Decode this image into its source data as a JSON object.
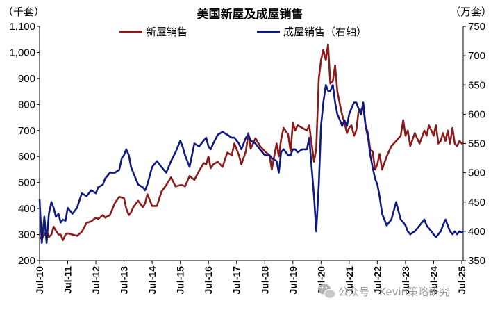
{
  "chart_data": {
    "type": "line",
    "title": "美国新屋及成屋销售",
    "left_unit": "（千套）",
    "right_unit": "（万套）",
    "left_axis": {
      "min": 200,
      "max": 1100,
      "ticks": [
        "200",
        "300",
        "400",
        "500",
        "600",
        "700",
        "800",
        "900",
        "1,000",
        "1,100"
      ]
    },
    "right_axis": {
      "min": 350,
      "max": 750,
      "ticks": [
        "350",
        "400",
        "450",
        "500",
        "550",
        "600",
        "650",
        "700",
        "750"
      ]
    },
    "x_ticks": [
      "Jul-10",
      "Jul-11",
      "Jul-12",
      "Jul-13",
      "Jul-14",
      "Jul-15",
      "Jul-16",
      "Jul-17",
      "Jul-18",
      "Jul-19",
      "Jul-20",
      "Jul-21",
      "Jul-22",
      "Jul-23",
      "Jul-24",
      "Jul-25"
    ],
    "x_range": [
      2010.5,
      2025.55
    ],
    "series": [
      {
        "name": "新屋销售",
        "axis": "left",
        "color": "#8b1a1a",
        "points": [
          [
            2010.5,
            290
          ],
          [
            2010.58,
            283
          ],
          [
            2010.67,
            300
          ],
          [
            2010.75,
            315
          ],
          [
            2010.83,
            290
          ],
          [
            2010.92,
            300
          ],
          [
            2011.0,
            330
          ],
          [
            2011.08,
            315
          ],
          [
            2011.17,
            300
          ],
          [
            2011.25,
            300
          ],
          [
            2011.33,
            278
          ],
          [
            2011.42,
            300
          ],
          [
            2011.5,
            305
          ],
          [
            2011.67,
            300
          ],
          [
            2011.83,
            295
          ],
          [
            2012.0,
            310
          ],
          [
            2012.17,
            345
          ],
          [
            2012.33,
            350
          ],
          [
            2012.5,
            365
          ],
          [
            2012.58,
            360
          ],
          [
            2012.75,
            375
          ],
          [
            2012.83,
            365
          ],
          [
            2013.0,
            375
          ],
          [
            2013.17,
            420
          ],
          [
            2013.33,
            445
          ],
          [
            2013.5,
            440
          ],
          [
            2013.58,
            400
          ],
          [
            2013.67,
            375
          ],
          [
            2013.75,
            385
          ],
          [
            2013.83,
            405
          ],
          [
            2014.0,
            430
          ],
          [
            2014.17,
            405
          ],
          [
            2014.25,
            420
          ],
          [
            2014.33,
            455
          ],
          [
            2014.5,
            410
          ],
          [
            2014.67,
            410
          ],
          [
            2014.83,
            465
          ],
          [
            2015.0,
            490
          ],
          [
            2015.17,
            520
          ],
          [
            2015.33,
            485
          ],
          [
            2015.5,
            490
          ],
          [
            2015.58,
            490
          ],
          [
            2015.67,
            485
          ],
          [
            2015.83,
            525
          ],
          [
            2016.0,
            510
          ],
          [
            2016.17,
            545
          ],
          [
            2016.33,
            575
          ],
          [
            2016.42,
            570
          ],
          [
            2016.5,
            600
          ],
          [
            2016.58,
            555
          ],
          [
            2016.67,
            570
          ],
          [
            2016.83,
            580
          ],
          [
            2017.0,
            560
          ],
          [
            2017.17,
            615
          ],
          [
            2017.33,
            605
          ],
          [
            2017.42,
            650
          ],
          [
            2017.58,
            605
          ],
          [
            2017.67,
            570
          ],
          [
            2017.83,
            620
          ],
          [
            2017.92,
            690
          ],
          [
            2018.0,
            630
          ],
          [
            2018.17,
            670
          ],
          [
            2018.33,
            640
          ],
          [
            2018.5,
            620
          ],
          [
            2018.67,
            605
          ],
          [
            2018.75,
            550
          ],
          [
            2018.92,
            650
          ],
          [
            2019.0,
            600
          ],
          [
            2019.08,
            665
          ],
          [
            2019.17,
            710
          ],
          [
            2019.33,
            685
          ],
          [
            2019.42,
            620
          ],
          [
            2019.5,
            730
          ],
          [
            2019.58,
            700
          ],
          [
            2019.67,
            720
          ],
          [
            2019.83,
            710
          ],
          [
            2020.0,
            700
          ],
          [
            2020.08,
            720
          ],
          [
            2020.25,
            580
          ],
          [
            2020.33,
            630
          ],
          [
            2020.42,
            900
          ],
          [
            2020.5,
            970
          ],
          [
            2020.58,
            1010
          ],
          [
            2020.67,
            970
          ],
          [
            2020.75,
            1030
          ],
          [
            2020.83,
            880
          ],
          [
            2020.92,
            890
          ],
          [
            2021.0,
            950
          ],
          [
            2021.08,
            850
          ],
          [
            2021.17,
            800
          ],
          [
            2021.25,
            760
          ],
          [
            2021.33,
            730
          ],
          [
            2021.42,
            690
          ],
          [
            2021.5,
            710
          ],
          [
            2021.58,
            720
          ],
          [
            2021.67,
            680
          ],
          [
            2021.75,
            700
          ],
          [
            2021.83,
            770
          ],
          [
            2021.92,
            780
          ],
          [
            2022.0,
            790
          ],
          [
            2022.08,
            720
          ],
          [
            2022.17,
            690
          ],
          [
            2022.25,
            625
          ],
          [
            2022.33,
            620
          ],
          [
            2022.42,
            550
          ],
          [
            2022.5,
            570
          ],
          [
            2022.58,
            610
          ],
          [
            2022.67,
            550
          ],
          [
            2022.83,
            600
          ],
          [
            2023.0,
            640
          ],
          [
            2023.17,
            660
          ],
          [
            2023.33,
            680
          ],
          [
            2023.42,
            740
          ],
          [
            2023.5,
            680
          ],
          [
            2023.58,
            700
          ],
          [
            2023.67,
            640
          ],
          [
            2023.83,
            690
          ],
          [
            2024.0,
            650
          ],
          [
            2024.17,
            700
          ],
          [
            2024.25,
            680
          ],
          [
            2024.33,
            720
          ],
          [
            2024.42,
            700
          ],
          [
            2024.5,
            680
          ],
          [
            2024.58,
            720
          ],
          [
            2024.67,
            650
          ],
          [
            2024.75,
            660
          ],
          [
            2024.83,
            690
          ],
          [
            2024.92,
            660
          ],
          [
            2025.0,
            700
          ],
          [
            2025.08,
            650
          ],
          [
            2025.17,
            710
          ],
          [
            2025.25,
            650
          ],
          [
            2025.33,
            640
          ],
          [
            2025.42,
            660
          ],
          [
            2025.5,
            650
          ],
          [
            2025.55,
            655
          ]
        ]
      },
      {
        "name": "成屋销售（右轴）",
        "axis": "right",
        "color": "#0f1a80",
        "points": [
          [
            2010.5,
            455
          ],
          [
            2010.58,
            380
          ],
          [
            2010.67,
            425
          ],
          [
            2010.75,
            380
          ],
          [
            2010.83,
            430
          ],
          [
            2010.92,
            450
          ],
          [
            2011.0,
            440
          ],
          [
            2011.08,
            425
          ],
          [
            2011.17,
            430
          ],
          [
            2011.25,
            415
          ],
          [
            2011.33,
            420
          ],
          [
            2011.42,
            418
          ],
          [
            2011.5,
            440
          ],
          [
            2011.67,
            430
          ],
          [
            2011.83,
            440
          ],
          [
            2012.0,
            465
          ],
          [
            2012.17,
            460
          ],
          [
            2012.33,
            470
          ],
          [
            2012.5,
            465
          ],
          [
            2012.58,
            475
          ],
          [
            2012.75,
            480
          ],
          [
            2012.83,
            490
          ],
          [
            2013.0,
            500
          ],
          [
            2013.17,
            500
          ],
          [
            2013.33,
            505
          ],
          [
            2013.42,
            525
          ],
          [
            2013.5,
            530
          ],
          [
            2013.58,
            540
          ],
          [
            2013.67,
            530
          ],
          [
            2013.75,
            510
          ],
          [
            2013.83,
            500
          ],
          [
            2014.0,
            480
          ],
          [
            2014.17,
            475
          ],
          [
            2014.25,
            470
          ],
          [
            2014.33,
            480
          ],
          [
            2014.5,
            510
          ],
          [
            2014.67,
            520
          ],
          [
            2014.83,
            510
          ],
          [
            2015.0,
            500
          ],
          [
            2015.17,
            520
          ],
          [
            2015.33,
            535
          ],
          [
            2015.5,
            555
          ],
          [
            2015.58,
            545
          ],
          [
            2015.67,
            530
          ],
          [
            2015.83,
            510
          ],
          [
            2016.0,
            550
          ],
          [
            2016.17,
            545
          ],
          [
            2016.33,
            555
          ],
          [
            2016.42,
            560
          ],
          [
            2016.5,
            545
          ],
          [
            2016.58,
            540
          ],
          [
            2016.67,
            550
          ],
          [
            2016.83,
            565
          ],
          [
            2017.0,
            570
          ],
          [
            2017.17,
            565
          ],
          [
            2017.33,
            560
          ],
          [
            2017.42,
            560
          ],
          [
            2017.58,
            550
          ],
          [
            2017.67,
            540
          ],
          [
            2017.83,
            560
          ],
          [
            2017.92,
            565
          ],
          [
            2018.0,
            555
          ],
          [
            2018.17,
            550
          ],
          [
            2018.33,
            540
          ],
          [
            2018.5,
            530
          ],
          [
            2018.67,
            530
          ],
          [
            2018.75,
            525
          ],
          [
            2018.92,
            520
          ],
          [
            2019.0,
            500
          ],
          [
            2019.08,
            535
          ],
          [
            2019.17,
            540
          ],
          [
            2019.33,
            530
          ],
          [
            2019.42,
            530
          ],
          [
            2019.5,
            540
          ],
          [
            2019.58,
            540
          ],
          [
            2019.67,
            535
          ],
          [
            2019.83,
            540
          ],
          [
            2020.0,
            540
          ],
          [
            2020.08,
            560
          ],
          [
            2020.25,
            460
          ],
          [
            2020.33,
            400
          ],
          [
            2020.42,
            480
          ],
          [
            2020.5,
            580
          ],
          [
            2020.58,
            620
          ],
          [
            2020.67,
            650
          ],
          [
            2020.75,
            640
          ],
          [
            2020.83,
            640
          ],
          [
            2020.92,
            650
          ],
          [
            2021.0,
            620
          ],
          [
            2021.08,
            600
          ],
          [
            2021.17,
            590
          ],
          [
            2021.25,
            580
          ],
          [
            2021.33,
            590
          ],
          [
            2021.42,
            580
          ],
          [
            2021.5,
            600
          ],
          [
            2021.58,
            610
          ],
          [
            2021.67,
            620
          ],
          [
            2021.75,
            620
          ],
          [
            2021.83,
            610
          ],
          [
            2021.92,
            600
          ],
          [
            2022.0,
            620
          ],
          [
            2022.08,
            580
          ],
          [
            2022.17,
            560
          ],
          [
            2022.25,
            530
          ],
          [
            2022.33,
            510
          ],
          [
            2022.42,
            490
          ],
          [
            2022.5,
            480
          ],
          [
            2022.58,
            460
          ],
          [
            2022.67,
            430
          ],
          [
            2022.83,
            410
          ],
          [
            2023.0,
            420
          ],
          [
            2023.17,
            450
          ],
          [
            2023.33,
            420
          ],
          [
            2023.42,
            415
          ],
          [
            2023.5,
            410
          ],
          [
            2023.58,
            400
          ],
          [
            2023.67,
            395
          ],
          [
            2023.83,
            400
          ],
          [
            2024.0,
            410
          ],
          [
            2024.17,
            420
          ],
          [
            2024.25,
            410
          ],
          [
            2024.33,
            405
          ],
          [
            2024.42,
            400
          ],
          [
            2024.5,
            395
          ],
          [
            2024.58,
            390
          ],
          [
            2024.67,
            395
          ],
          [
            2024.75,
            400
          ],
          [
            2024.83,
            410
          ],
          [
            2024.92,
            420
          ],
          [
            2025.0,
            410
          ],
          [
            2025.08,
            400
          ],
          [
            2025.17,
            395
          ],
          [
            2025.25,
            400
          ],
          [
            2025.33,
            395
          ],
          [
            2025.42,
            400
          ],
          [
            2025.5,
            398
          ],
          [
            2025.55,
            400
          ]
        ]
      }
    ]
  },
  "watermark": "公众号 · Kevin策略研究",
  "icon": "wechat-icon"
}
